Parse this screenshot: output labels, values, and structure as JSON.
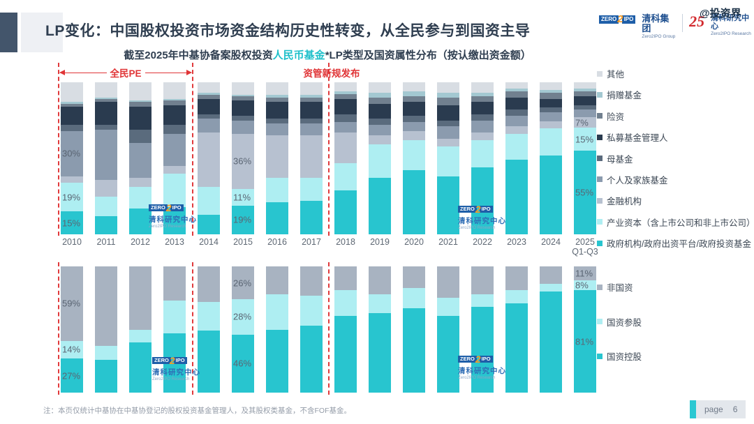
{
  "header": {
    "title": "LP变化：中国股权投资市场资金结构历史性转变，从全民参与到国资主导",
    "subtitle_prefix": "截至2025年中基协备案股权投资",
    "subtitle_highlight": "人民币基金",
    "subtitle_suffix": "*LP类型及国资属性分布（按认缴出资金额）",
    "logo1_zero": "ZERO",
    "logo1_two": "2",
    "logo1_ipo": "IPO",
    "logo1_cn": "清科集团",
    "logo1_en": "Zero2IPO Group",
    "logo_25": "25",
    "logo2_cn": "清科研究中心",
    "logo2_en": "Zero2IPO Research",
    "site_watermark": "@投资界"
  },
  "annotations": {
    "era1": "全民PE",
    "era2": "资管新规发布"
  },
  "watermark_badge": {
    "zero": "ZERO",
    "two": "2",
    "ipo": "IPO",
    "cn": "清科研究中心",
    "en": "Zero2IPO Research"
  },
  "chart_data": [
    {
      "type": "bar",
      "stacked": true,
      "unit": "percent_share",
      "title": "截至2025年中基协备案股权投资人民币基金LP类型分布（按认缴出资金额）",
      "ylim": [
        0,
        100
      ],
      "grid": false,
      "legend_position": "right",
      "categories": [
        "2010",
        "2011",
        "2012",
        "2013",
        "2014",
        "2015",
        "2016",
        "2017",
        "2018",
        "2019",
        "2020",
        "2021",
        "2022",
        "2023",
        "2024",
        "2025\nQ1-Q3"
      ],
      "series": [
        {
          "name": "政府机构/政府出资平台/政府投资基金",
          "color": "#28c5cf",
          "values": [
            15,
            12,
            17,
            18,
            13,
            19,
            21,
            22,
            29,
            37,
            42,
            38,
            44,
            49,
            53,
            55
          ]
        },
        {
          "name": "产业资本（含上市公司和非上市公司）",
          "color": "#aeeef2",
          "values": [
            19,
            13,
            14,
            22,
            18,
            11,
            16,
            15,
            18,
            22,
            20,
            20,
            18,
            17,
            18,
            15
          ]
        },
        {
          "name": "金融机构",
          "color": "#b7c1d0",
          "values": [
            4,
            11,
            6,
            5,
            36,
            36,
            28,
            28,
            20,
            6,
            6,
            5,
            5,
            5,
            5,
            7
          ]
        },
        {
          "name": "个人及家族基金",
          "color": "#8b9bae",
          "values": [
            30,
            33,
            23,
            21,
            9,
            9,
            8,
            8,
            7,
            7,
            6,
            8,
            8,
            7,
            6,
            5
          ]
        },
        {
          "name": "母基金",
          "color": "#5a6b7d",
          "values": [
            4,
            3,
            9,
            6,
            3,
            3,
            3,
            3,
            5,
            4,
            4,
            4,
            4,
            4,
            3,
            3
          ]
        },
        {
          "name": "私募基金管理人",
          "color": "#2a3b4f",
          "values": [
            12,
            15,
            15,
            13,
            10,
            10,
            11,
            11,
            10,
            10,
            9,
            10,
            8,
            8,
            6,
            6
          ]
        },
        {
          "name": "险资",
          "color": "#71808f",
          "values": [
            2,
            2,
            3,
            3,
            3,
            3,
            3,
            3,
            3,
            4,
            4,
            5,
            4,
            4,
            4,
            3
          ]
        },
        {
          "name": "捐赠基金",
          "color": "#a3c8d1",
          "values": [
            1,
            1,
            1,
            1,
            1,
            1,
            2,
            2,
            2,
            3,
            3,
            3,
            2,
            2,
            2,
            2
          ]
        },
        {
          "name": "其他",
          "color": "#d8dde3",
          "values": [
            13,
            10,
            12,
            11,
            7,
            8,
            8,
            8,
            6,
            7,
            6,
            7,
            7,
            4,
            5,
            4
          ]
        }
      ],
      "labels": [
        {
          "cat": 0,
          "series": 0,
          "text": "15%"
        },
        {
          "cat": 0,
          "series": 1,
          "text": "19%"
        },
        {
          "cat": 0,
          "series": 3,
          "text": "30%"
        },
        {
          "cat": 5,
          "series": 0,
          "text": "19%"
        },
        {
          "cat": 5,
          "series": 1,
          "text": "11%"
        },
        {
          "cat": 5,
          "series": 2,
          "text": "36%"
        },
        {
          "cat": 15,
          "series": 0,
          "text": "55%"
        },
        {
          "cat": 15,
          "series": 1,
          "text": "15%"
        },
        {
          "cat": 15,
          "series": 2,
          "text": "7%"
        }
      ]
    },
    {
      "type": "bar",
      "stacked": true,
      "unit": "percent_share",
      "title": "截至2025年中基协备案股权投资人民币基金LP国资属性分布（按认缴出资金额）",
      "ylim": [
        0,
        100
      ],
      "grid": false,
      "legend_position": "right",
      "categories": [
        "2010",
        "2011",
        "2012",
        "2013",
        "2014",
        "2015",
        "2016",
        "2017",
        "2018",
        "2019",
        "2020",
        "2021",
        "2022",
        "2023",
        "2024",
        "2025\nQ1-Q3"
      ],
      "series": [
        {
          "name": "国资控股",
          "color": "#28c5cf",
          "values": [
            27,
            26,
            40,
            47,
            49,
            46,
            50,
            53,
            61,
            63,
            67,
            61,
            68,
            71,
            80,
            81
          ]
        },
        {
          "name": "国资参股",
          "color": "#aeeef2",
          "values": [
            14,
            11,
            10,
            26,
            23,
            28,
            28,
            24,
            20,
            15,
            16,
            14,
            10,
            10,
            6,
            8
          ]
        },
        {
          "name": "非国资",
          "color": "#a8b3c1",
          "values": [
            59,
            63,
            50,
            27,
            28,
            26,
            22,
            23,
            19,
            22,
            17,
            25,
            22,
            19,
            14,
            11
          ]
        }
      ],
      "labels": [
        {
          "cat": 0,
          "series": 0,
          "text": "27%"
        },
        {
          "cat": 0,
          "series": 1,
          "text": "14%"
        },
        {
          "cat": 0,
          "series": 2,
          "text": "59%"
        },
        {
          "cat": 5,
          "series": 0,
          "text": "46%"
        },
        {
          "cat": 5,
          "series": 1,
          "text": "28%"
        },
        {
          "cat": 5,
          "series": 2,
          "text": "26%"
        },
        {
          "cat": 15,
          "series": 0,
          "text": "81%"
        },
        {
          "cat": 15,
          "series": 1,
          "text": "8%"
        },
        {
          "cat": 15,
          "series": 2,
          "text": "11%"
        }
      ]
    }
  ],
  "footnote": "注：本页仅统计中基协在中基协登记的股权投资基金管理人，及其股权类基金，不含FOF基金。",
  "pager": {
    "label": "page",
    "number": "6"
  }
}
